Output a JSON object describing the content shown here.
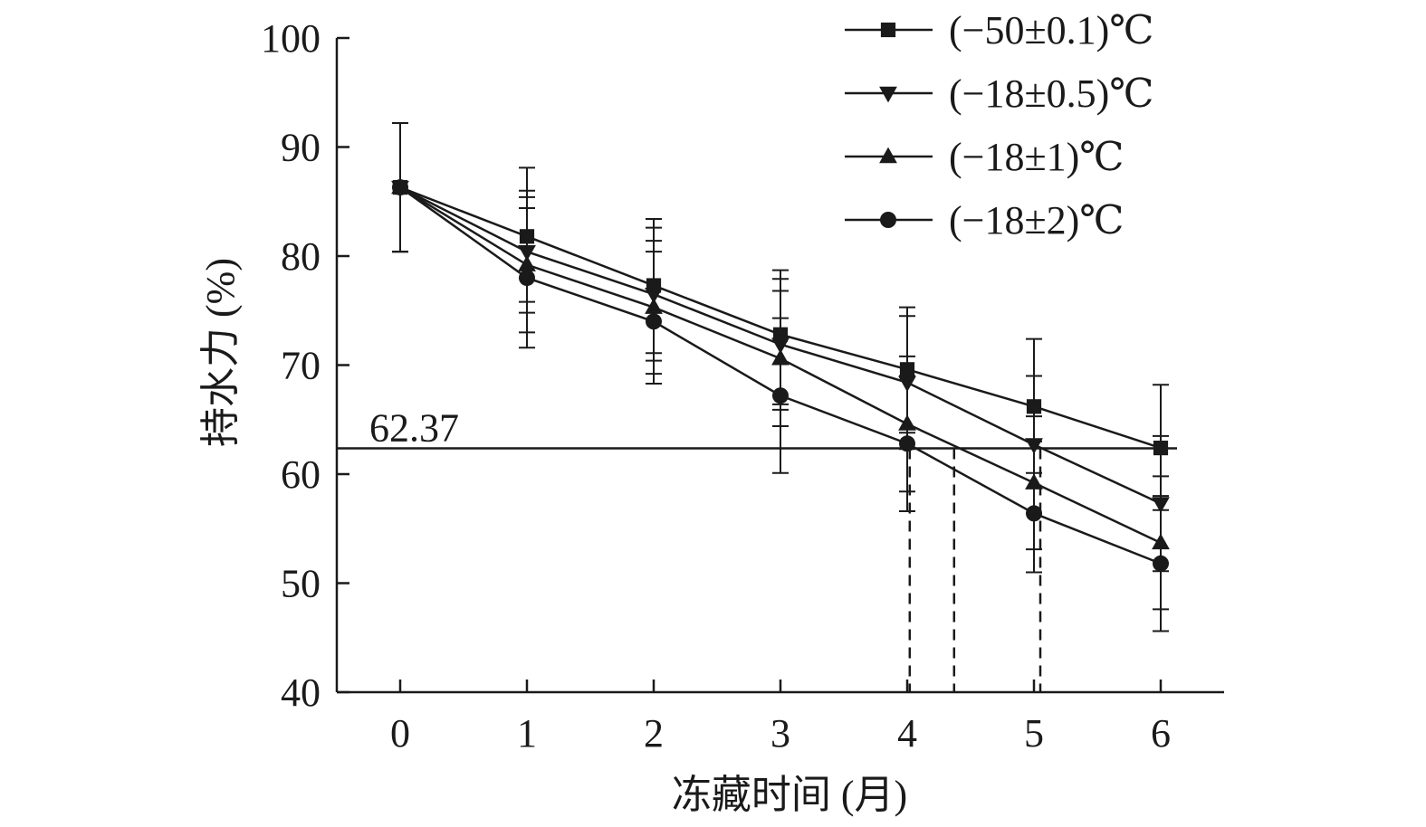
{
  "chart_data": {
    "type": "line",
    "xlabel": "冻藏时间 (月)",
    "ylabel": "持水力 (%)",
    "x": [
      0,
      1,
      2,
      3,
      4,
      5,
      6
    ],
    "xlim": [
      -0.5,
      6.5
    ],
    "ylim": [
      40,
      100
    ],
    "yticks": [
      40,
      50,
      60,
      70,
      80,
      90,
      100
    ],
    "grid": false,
    "legend_position": "top-right",
    "series": [
      {
        "name": "(−50±0.1)℃",
        "marker": "square",
        "values": [
          86.3,
          81.8,
          77.3,
          72.8,
          69.6,
          66.2,
          62.4
        ],
        "err_upper": [
          92.2,
          88.1,
          83.4,
          78.7,
          75.3,
          72.4,
          68.2
        ],
        "err_lower": [
          80.4,
          75.8,
          71.1,
          66.4,
          63.8,
          60.1,
          56.7
        ]
      },
      {
        "name": "(−18±0.5)℃",
        "marker": "triangle-down",
        "values": [
          86.3,
          80.4,
          76.5,
          71.9,
          68.4,
          62.7,
          57.3
        ],
        "err_upper": [
          92.2,
          86.0,
          82.6,
          77.9,
          74.5,
          69.0,
          63.5
        ],
        "err_lower": [
          80.4,
          74.8,
          70.4,
          65.9,
          62.3,
          56.4,
          51.1
        ]
      },
      {
        "name": "(−18±1)℃",
        "marker": "triangle-up",
        "values": [
          86.3,
          79.2,
          75.3,
          70.6,
          64.6,
          59.2,
          53.7
        ],
        "err_upper": [
          92.2,
          85.4,
          81.4,
          76.8,
          70.8,
          65.3,
          59.8
        ],
        "err_lower": [
          80.4,
          73.0,
          69.2,
          64.4,
          58.4,
          53.1,
          47.6
        ]
      },
      {
        "name": "(−18±2)℃",
        "marker": "circle",
        "values": [
          86.3,
          78.0,
          74.0,
          67.2,
          62.8,
          56.4,
          51.8
        ],
        "err_upper": [
          92.2,
          84.4,
          80.4,
          74.3,
          69.0,
          63.0,
          58.0
        ],
        "err_lower": [
          80.4,
          71.6,
          68.3,
          60.1,
          56.6,
          51.0,
          45.6
        ]
      }
    ],
    "reference_line": {
      "y": 62.37,
      "label": "62.37",
      "dashed_drop_x": [
        4.02,
        4.37,
        5.05
      ]
    }
  }
}
